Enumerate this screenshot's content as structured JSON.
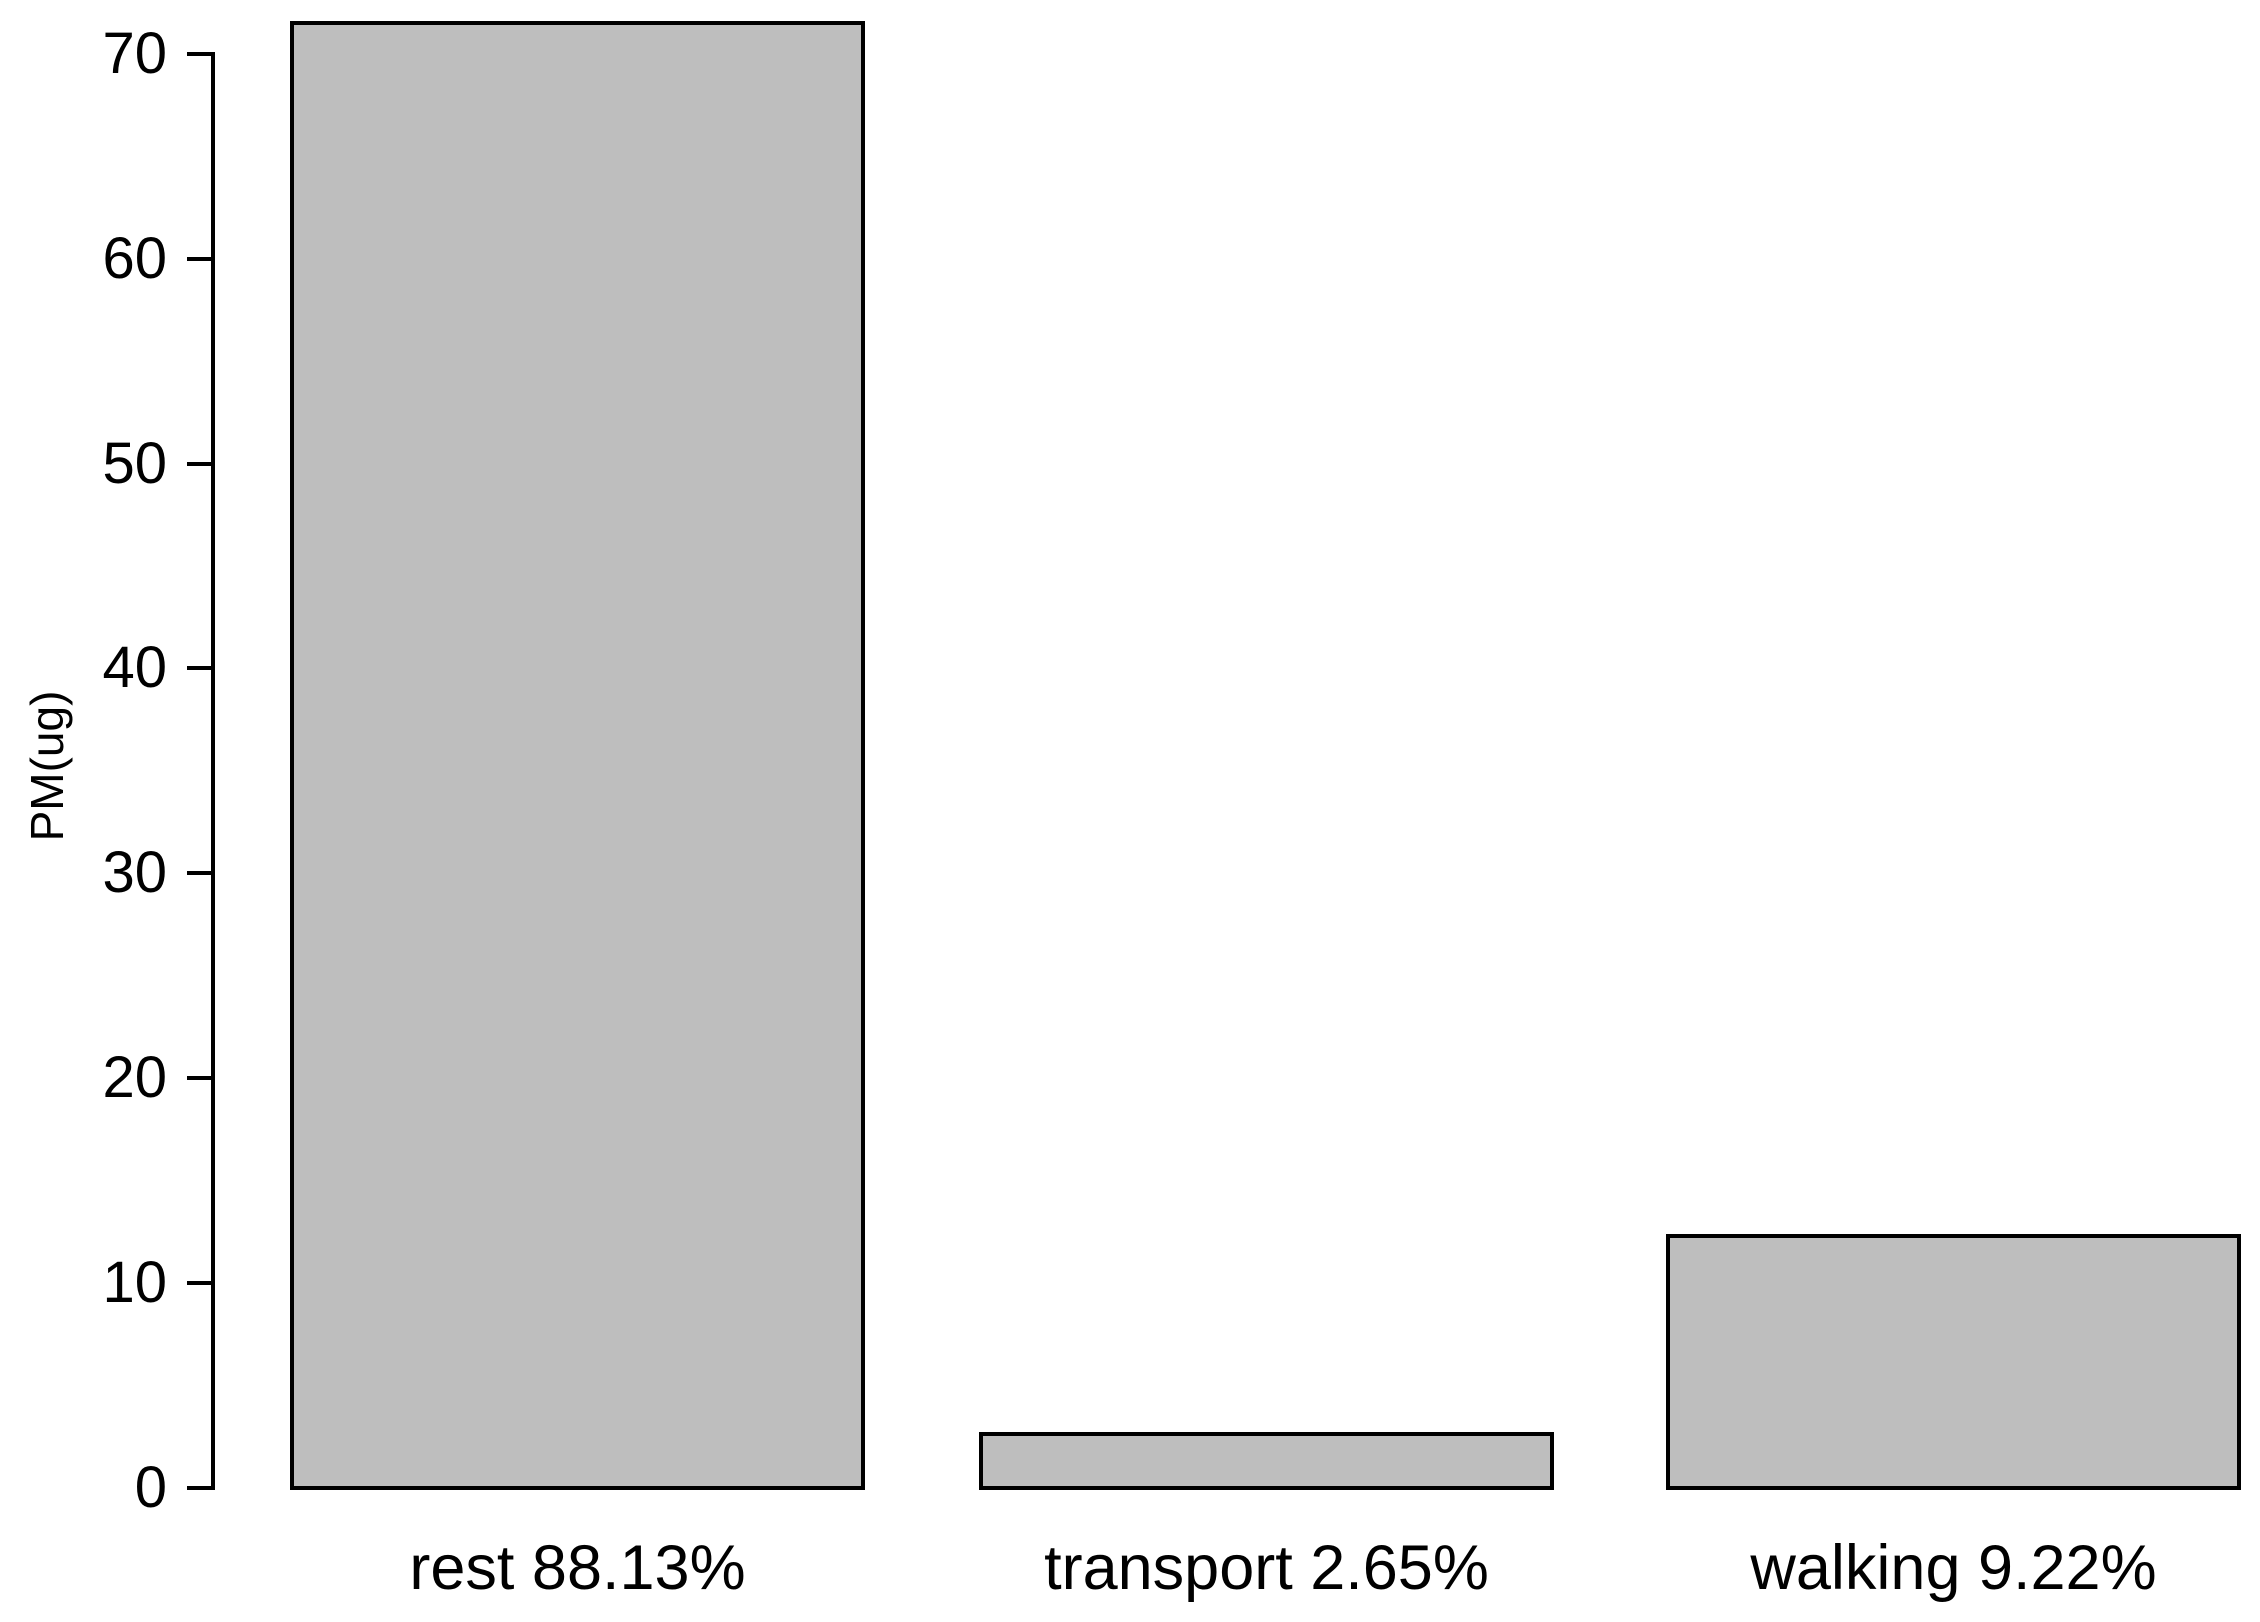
{
  "chart_data": {
    "type": "bar",
    "title": "",
    "xlabel": "",
    "ylabel": "PM(ug)",
    "categories": [
      "rest 88.13%",
      "transport 2.65%",
      "walking 9.22%"
    ],
    "values": [
      71.5,
      2.65,
      12.3
    ],
    "yticks": [
      0,
      10,
      20,
      30,
      40,
      50,
      60,
      70
    ],
    "ylim": [
      0,
      71.5
    ],
    "grid": false,
    "legend": "none",
    "bar_fill": "#bebebe",
    "bar_border": "#000000",
    "axis_color": "#000000",
    "text_color": "#000000",
    "background": "#ffffff"
  }
}
